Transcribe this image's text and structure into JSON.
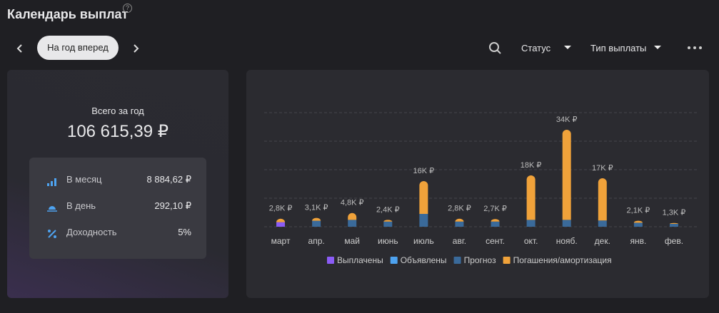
{
  "header": {
    "title": "Календарь выплат",
    "help": "?",
    "period": "На год вперед",
    "filters": [
      "Статус",
      "Тип выплаты"
    ]
  },
  "summary": {
    "title": "Всего за год",
    "total": "106 615,39 ₽",
    "rows": [
      {
        "label": "В месяц",
        "value": "8 884,62 ₽"
      },
      {
        "label": "В день",
        "value": "292,10 ₽"
      },
      {
        "label": "Доходность",
        "value": "5%"
      }
    ]
  },
  "chart_data": {
    "type": "stacked-bar",
    "categories": [
      "март",
      "апр.",
      "май",
      "июнь",
      "июль",
      "авг.",
      "сент.",
      "окт.",
      "нояб.",
      "дек.",
      "янв.",
      "фев."
    ],
    "series": [
      {
        "name": "Выплачены",
        "color": "#8b5cf6",
        "values": [
          1600,
          0,
          0,
          0,
          0,
          0,
          0,
          0,
          0,
          0,
          0,
          0
        ]
      },
      {
        "name": "Объявлены",
        "color": "#4ea3f0",
        "values": [
          0,
          0,
          0,
          0,
          0,
          0,
          0,
          0,
          0,
          0,
          0,
          0
        ]
      },
      {
        "name": "Прогноз",
        "color": "#3a6a9a",
        "values": [
          0,
          2100,
          2400,
          1800,
          4500,
          1800,
          1800,
          2400,
          2400,
          2200,
          1400,
          1000
        ]
      },
      {
        "name": "Погашения/амортизация",
        "color": "#f0a23a",
        "values": [
          1200,
          1000,
          2400,
          600,
          11500,
          1000,
          900,
          15600,
          31600,
          14800,
          700,
          300
        ]
      }
    ],
    "totals": [
      2800,
      3100,
      4800,
      2400,
      16000,
      2800,
      2700,
      18000,
      34000,
      17000,
      2100,
      1300
    ],
    "total_labels": [
      "2,8K ₽",
      "3,1K ₽",
      "4,8K ₽",
      "2,4K ₽",
      "16K ₽",
      "2,8K ₽",
      "2,7K ₽",
      "18K ₽",
      "34K ₽",
      "17K ₽",
      "2,1K ₽",
      "1,3K ₽"
    ],
    "ylim": [
      0,
      40000
    ],
    "yticks": [
      0,
      10000,
      20000,
      30000,
      40000
    ],
    "grid": true
  }
}
